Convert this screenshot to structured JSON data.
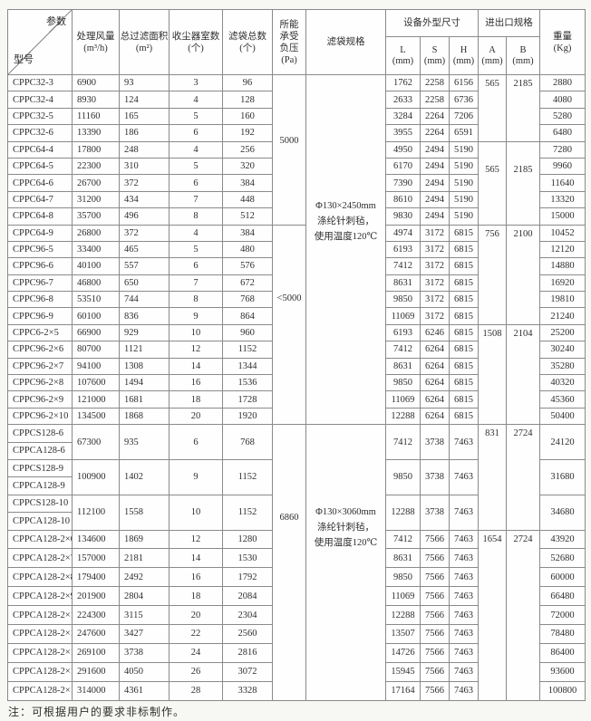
{
  "note": "注：可根据用户的要求非标制作。",
  "table": {
    "header": {
      "corner_top": "参数",
      "corner_bottom": "型号",
      "param_cols": [
        {
          "name": "airflow",
          "lines": [
            "处理风量",
            "(m³/h)"
          ]
        },
        {
          "name": "filter-area",
          "lines": [
            "总过滤面积",
            "(m²)"
          ]
        },
        {
          "name": "rooms",
          "lines": [
            "收尘器室数",
            "(个)"
          ]
        },
        {
          "name": "bags",
          "lines": [
            "滤袋总数",
            "(个)"
          ]
        },
        {
          "name": "pressure",
          "lines": [
            "所能",
            "承受",
            "负压",
            "(Pa)"
          ]
        },
        {
          "name": "bag-spec",
          "lines": [
            "滤袋规格"
          ]
        }
      ],
      "dims_group": "设备外型尺寸",
      "io_group": "进出口规格",
      "dims": [
        [
          "L",
          "(mm)"
        ],
        [
          "S",
          "(mm)"
        ],
        [
          "H",
          "(mm)"
        ]
      ],
      "io": [
        [
          "A",
          "(mm)"
        ],
        [
          "B",
          "(mm)"
        ]
      ],
      "weight": [
        "重量",
        "(Kg)"
      ]
    },
    "pressure_cells": [
      {
        "text": "5000",
        "start": 0,
        "span": 9
      },
      {
        "text": "<5000",
        "start": 9,
        "span": 12
      },
      {
        "text": "6860",
        "start": 21,
        "span": 15
      }
    ],
    "spec_cells": [
      {
        "lines": [
          "Φ130×2450mm",
          "涤纶针刺毡，",
          "使用温度120℃"
        ],
        "start": 0,
        "span": 21
      },
      {
        "lines": [
          "Φ130×3060mm",
          "涤纶针刺毡，",
          "使用温度120℃"
        ],
        "start": 21,
        "span": 15
      }
    ],
    "io_cells": [
      {
        "a": "565",
        "b": "2185",
        "start": 0,
        "span": 4
      },
      {
        "a": "565",
        "b": "2185",
        "start": 4,
        "span": 5
      },
      {
        "a": "756",
        "b": "2100",
        "start": 9,
        "span": 6
      },
      {
        "a": "1508",
        "b": "2104",
        "start": 15,
        "span": 6
      },
      {
        "a": "831",
        "b": "2724",
        "start": 21,
        "span": 6
      },
      {
        "a": "1654",
        "b": "2724",
        "start": 27,
        "span": 9
      }
    ],
    "rows": [
      {
        "m": "CPPC32-3",
        "af": "6900",
        "ar": "93",
        "rm": "3",
        "bg": "96",
        "l": "1762",
        "s": "2258",
        "h": "6156",
        "w": "2880"
      },
      {
        "m": "CPPC32-4",
        "af": "8930",
        "ar": "124",
        "rm": "4",
        "bg": "128",
        "l": "2633",
        "s": "2258",
        "h": "6736",
        "w": "4080"
      },
      {
        "m": "CPPC32-5",
        "af": "11160",
        "ar": "165",
        "rm": "5",
        "bg": "160",
        "l": "3284",
        "s": "2264",
        "h": "7206",
        "w": "5280"
      },
      {
        "m": "CPPC32-6",
        "af": "13390",
        "ar": "186",
        "rm": "6",
        "bg": "192",
        "l": "3955",
        "s": "2264",
        "h": "6591",
        "w": "6480"
      },
      {
        "m": "CPPC64-4",
        "af": "17800",
        "ar": "248",
        "rm": "4",
        "bg": "256",
        "l": "4950",
        "s": "2494",
        "h": "5190",
        "w": "7280"
      },
      {
        "m": "CPPC64-5",
        "af": "22300",
        "ar": "310",
        "rm": "5",
        "bg": "320",
        "l": "6170",
        "s": "2494",
        "h": "5190",
        "w": "9960"
      },
      {
        "m": "CPPC64-6",
        "af": "26700",
        "ar": "372",
        "rm": "6",
        "bg": "384",
        "l": "7390",
        "s": "2494",
        "h": "5190",
        "w": "11640"
      },
      {
        "m": "CPPC64-7",
        "af": "31200",
        "ar": "434",
        "rm": "7",
        "bg": "448",
        "l": "8610",
        "s": "2494",
        "h": "5190",
        "w": "13320"
      },
      {
        "m": "CPPC64-8",
        "af": "35700",
        "ar": "496",
        "rm": "8",
        "bg": "512",
        "l": "9830",
        "s": "2494",
        "h": "5190",
        "w": "15000"
      },
      {
        "m": "CPPC64-9",
        "af": "26800",
        "ar": "372",
        "rm": "4",
        "bg": "384",
        "l": "4974",
        "s": "3172",
        "h": "6815",
        "w": "10452"
      },
      {
        "m": "CPPC96-5",
        "af": "33400",
        "ar": "465",
        "rm": "5",
        "bg": "480",
        "l": "6193",
        "s": "3172",
        "h": "6815",
        "w": "12120"
      },
      {
        "m": "CPPC96-6",
        "af": "40100",
        "ar": "557",
        "rm": "6",
        "bg": "576",
        "l": "7412",
        "s": "3172",
        "h": "6815",
        "w": "14880"
      },
      {
        "m": "CPPC96-7",
        "af": "46800",
        "ar": "650",
        "rm": "7",
        "bg": "672",
        "l": "8631",
        "s": "3172",
        "h": "6815",
        "w": "16920"
      },
      {
        "m": "CPPC96-8",
        "af": "53510",
        "ar": "744",
        "rm": "8",
        "bg": "768",
        "l": "9850",
        "s": "3172",
        "h": "6815",
        "w": "19810"
      },
      {
        "m": "CPPC96-9",
        "af": "60100",
        "ar": "836",
        "rm": "9",
        "bg": "864",
        "l": "11069",
        "s": "3172",
        "h": "6815",
        "w": "21240"
      },
      {
        "m": "CPPC6-2×5",
        "af": "66900",
        "ar": "929",
        "rm": "10",
        "bg": "960",
        "l": "6193",
        "s": "6246",
        "h": "6815",
        "w": "25200"
      },
      {
        "m": "CPPC96-2×6",
        "af": "80700",
        "ar": "1121",
        "rm": "12",
        "bg": "1152",
        "l": "7412",
        "s": "6264",
        "h": "6815",
        "w": "30240"
      },
      {
        "m": "CPPC96-2×7",
        "af": "94100",
        "ar": "1308",
        "rm": "14",
        "bg": "1344",
        "l": "8631",
        "s": "6264",
        "h": "6815",
        "w": "35280"
      },
      {
        "m": "CPPC96-2×8",
        "af": "107600",
        "ar": "1494",
        "rm": "16",
        "bg": "1536",
        "l": "9850",
        "s": "6264",
        "h": "6815",
        "w": "40320"
      },
      {
        "m": "CPPC96-2×9",
        "af": "121000",
        "ar": "1681",
        "rm": "18",
        "bg": "1728",
        "l": "11069",
        "s": "6264",
        "h": "6815",
        "w": "45360"
      },
      {
        "m": "CPPC96-2×10",
        "af": "134500",
        "ar": "1868",
        "rm": "20",
        "bg": "1920",
        "l": "12288",
        "s": "6264",
        "h": "6815",
        "w": "50400"
      },
      {
        "m": "CPPCS128-6",
        "pair": true,
        "af": "67300",
        "ar": "935",
        "rm": "6",
        "bg": "768",
        "l": "7412",
        "s": "3738",
        "h": "7463",
        "w": "24120"
      },
      {
        "m": "CPPCA128-6",
        "tail": true
      },
      {
        "m": "CPPCS128-9",
        "pair": true,
        "af": "100900",
        "ar": "1402",
        "rm": "9",
        "bg": "1152",
        "l": "9850",
        "s": "3738",
        "h": "7463",
        "w": "31680"
      },
      {
        "m": "CPPCA128-9",
        "tail": true
      },
      {
        "m": "CPPCS128-10",
        "pair": true,
        "af": "112100",
        "ar": "1558",
        "rm": "10",
        "bg": "1152",
        "l": "12288",
        "s": "3738",
        "h": "7463",
        "w": "34680"
      },
      {
        "m": "CPPCA128-10",
        "tail": true
      },
      {
        "m": "CPPCA128-2×6",
        "af": "134600",
        "ar": "1869",
        "rm": "12",
        "bg": "1280",
        "l": "7412",
        "s": "7566",
        "h": "7463",
        "w": "43920"
      },
      {
        "m": "CPPCA128-2×7",
        "af": "157000",
        "ar": "2181",
        "rm": "14",
        "bg": "1530",
        "l": "8631",
        "s": "7566",
        "h": "7463",
        "w": "52680"
      },
      {
        "m": "CPPCA128-2×8",
        "af": "179400",
        "ar": "2492",
        "rm": "16",
        "bg": "1792",
        "l": "9850",
        "s": "7566",
        "h": "7463",
        "w": "60000"
      },
      {
        "m": "CPPCA128-2×9",
        "af": "201900",
        "ar": "2804",
        "rm": "18",
        "bg": "2084",
        "l": "11069",
        "s": "7566",
        "h": "7463",
        "w": "66480"
      },
      {
        "m": "CPPCA128-2×10",
        "af": "224300",
        "ar": "3115",
        "rm": "20",
        "bg": "2304",
        "l": "12288",
        "s": "7566",
        "h": "7463",
        "w": "72000"
      },
      {
        "m": "CPPCA128-2×11",
        "af": "247600",
        "ar": "3427",
        "rm": "22",
        "bg": "2560",
        "l": "13507",
        "s": "7566",
        "h": "7463",
        "w": "78480"
      },
      {
        "m": "CPPCA128-2×12",
        "af": "269100",
        "ar": "3738",
        "rm": "24",
        "bg": "2816",
        "l": "14726",
        "s": "7566",
        "h": "7463",
        "w": "86400"
      },
      {
        "m": "CPPCA128-2×13",
        "af": "291600",
        "ar": "4050",
        "rm": "26",
        "bg": "3072",
        "l": "15945",
        "s": "7566",
        "h": "7463",
        "w": "93600"
      },
      {
        "m": "CPPCA128-2×14",
        "af": "314000",
        "ar": "4361",
        "rm": "28",
        "bg": "3328",
        "l": "17164",
        "s": "7566",
        "h": "7463",
        "w": "100800"
      }
    ]
  }
}
